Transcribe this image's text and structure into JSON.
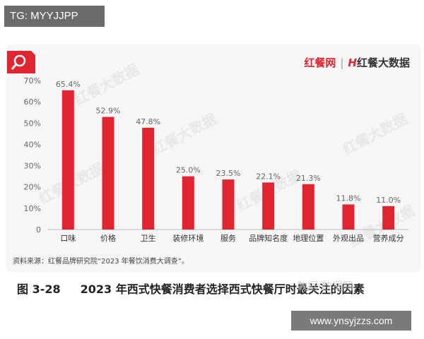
{
  "top_tag": "TG: MYYJJPP",
  "brand": {
    "name1": "红餐网",
    "separator": "|",
    "mark": "H",
    "name2": "红餐大数据"
  },
  "watermark_text": "红餐大数据",
  "source_text": "资料来源：红餐品牌研究院“2023 年餐饮消费大调查”。",
  "figure": {
    "number": "图 3-28",
    "title": "2023 年西式快餐消费者选择西式快餐厅时最关注的因素"
  },
  "site_tag": "www.ynsyjzzs.com",
  "overlay_watermark": "数据·数据网",
  "colors": {
    "bar": "#e02531",
    "brand": "#e02531",
    "icon_bg": "#e02531"
  },
  "chart_data": {
    "type": "bar",
    "categories": [
      "口味",
      "价格",
      "卫生",
      "装修环境",
      "服务",
      "品牌知名度",
      "地理位置",
      "外观出品",
      "营养成分"
    ],
    "values": [
      65.4,
      52.9,
      47.8,
      25.0,
      23.5,
      22.1,
      21.3,
      11.8,
      11.0
    ],
    "data_labels": [
      "65.4%",
      "52.9%",
      "47.8%",
      "25.0%",
      "23.5%",
      "22.1%",
      "21.3%",
      "11.8%",
      "11.0%"
    ],
    "yticks": [
      "0",
      "10%",
      "20%",
      "30%",
      "40%",
      "50%",
      "60%",
      "70%"
    ],
    "ylim": [
      0,
      70
    ],
    "title": "",
    "xlabel": "",
    "ylabel": "",
    "grid": false,
    "legend": "none"
  }
}
